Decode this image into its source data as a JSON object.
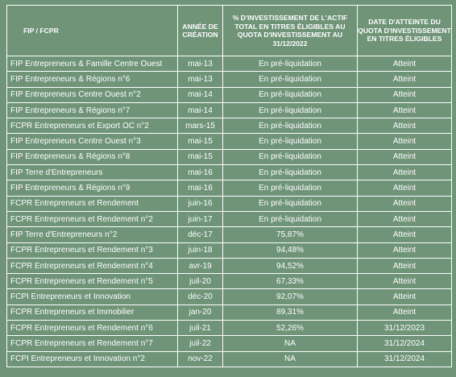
{
  "table": {
    "headers": [
      "FIP / FCPR",
      "Année de création",
      "% d'investissement de l'actif total en titres éligibles au quota d'investissement au 31/12/2022",
      "Date d'atteinte du quota d'investissement en titres éligibles"
    ],
    "rows": [
      [
        "FIP Entrepreneurs & Famille Centre Ouest",
        "mai-13",
        "En pré-liquidation",
        "Atteint"
      ],
      [
        "FIP Entrepreneurs & Régions n°6",
        "mai-13",
        "En pré-liquidation",
        "Atteint"
      ],
      [
        "FIP Entrepreneurs Centre Ouest n°2",
        "mai-14",
        "En pré-liquidation",
        "Atteint"
      ],
      [
        "FIP Entrepreneurs & Régions n°7",
        "mai-14",
        "En pré-liquidation",
        "Atteint"
      ],
      [
        "FCPR Entrepreneurs et Export OC n°2",
        "mars-15",
        "En pré-liquidation",
        "Atteint"
      ],
      [
        "FIP Entrepreneurs Centre Ouest n°3",
        "mai-15",
        "En pré-liquidation",
        "Atteint"
      ],
      [
        "FIP Entrepreneurs & Régions n°8",
        "mai-15",
        "En pré-liquidation",
        "Atteint"
      ],
      [
        "FIP Terre d'Entrepreneurs",
        "mai-16",
        "En pré-liquidation",
        "Atteint"
      ],
      [
        "FIP Entrepreneurs & Régions n°9",
        "mai-16",
        "En pré-liquidation",
        "Atteint"
      ],
      [
        "FCPR Entrepreneurs et Rendement",
        "juin-16",
        "En pré-liquidation",
        "Atteint"
      ],
      [
        "FCPR Entrepreneurs et Rendement n°2",
        "juin-17",
        "En pré-liquidation",
        "Atteint"
      ],
      [
        "FIP Terre d'Entrepreneurs n°2",
        "déc-17",
        "75,87%",
        "Atteint"
      ],
      [
        "FCPR Entrepreneurs et Rendement n°3",
        "juin-18",
        "94,48%",
        "Atteint"
      ],
      [
        "FCPR Entrepreneurs et Rendement n°4",
        "avr-19",
        "94,52%",
        "Atteint"
      ],
      [
        "FCPR Entrepreneurs et Rendement n°5",
        "juil-20",
        "67,33%",
        "Atteint"
      ],
      [
        "FCPI Entrepreneurs et Innovation",
        "déc-20",
        "92,07%",
        "Atteint"
      ],
      [
        "FCPR Entrepreneurs et Immobilier",
        "jan-20",
        "89,31%",
        "Atteint"
      ],
      [
        "FCPR Entrepreneurs et Rendement n°6",
        "juil-21",
        "52,26%",
        "31/12/2023"
      ],
      [
        "FCPR Entrepreneurs et Rendement n°7",
        "juil-22",
        "NA",
        "31/12/2024"
      ],
      [
        "FCPI Entrepreneurs et Innovation n°2",
        "nov-22",
        "NA",
        "31/12/2024"
      ]
    ]
  }
}
